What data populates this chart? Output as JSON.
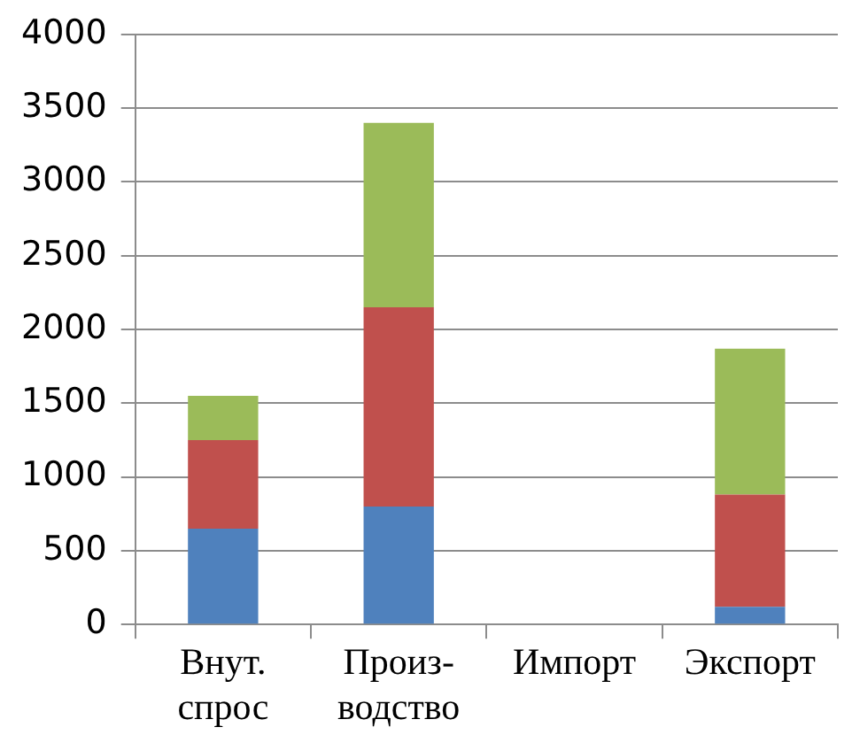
{
  "chart_data": {
    "type": "bar",
    "stacked": true,
    "categories": [
      "Внут. спрос",
      "Произ-водство",
      "Импорт",
      "Экспорт"
    ],
    "series": [
      {
        "color": "#4f81bd",
        "values": [
          650,
          800,
          0,
          120
        ]
      },
      {
        "color": "#c0504d",
        "values": [
          600,
          1350,
          0,
          760
        ]
      },
      {
        "color": "#9bbb59",
        "values": [
          300,
          1250,
          0,
          990
        ]
      }
    ],
    "ylim": [
      0,
      4000
    ],
    "yticks": [
      0,
      500,
      1000,
      1500,
      2000,
      2500,
      3000,
      3500,
      4000
    ],
    "grid": "y",
    "legend": false
  }
}
